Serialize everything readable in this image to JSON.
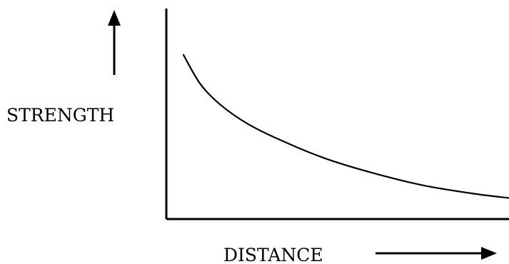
{
  "chart_data": {
    "type": "line",
    "title": "",
    "xlabel": "DISTANCE",
    "ylabel": "STRENGTH",
    "ticks": "none",
    "grid": false,
    "legend": "none",
    "series": [
      {
        "x": [
          0.05,
          0.1,
          0.16,
          0.24,
          0.34,
          0.46,
          0.6,
          0.75,
          0.9,
          1.0
        ],
        "y": [
          0.78,
          0.64,
          0.54,
          0.45,
          0.37,
          0.29,
          0.22,
          0.16,
          0.12,
          0.1
        ]
      }
    ],
    "xlim": [
      0,
      1
    ],
    "ylim": [
      0,
      1
    ],
    "colors": {
      "stroke": "#000000",
      "background": "#ffffff"
    }
  }
}
